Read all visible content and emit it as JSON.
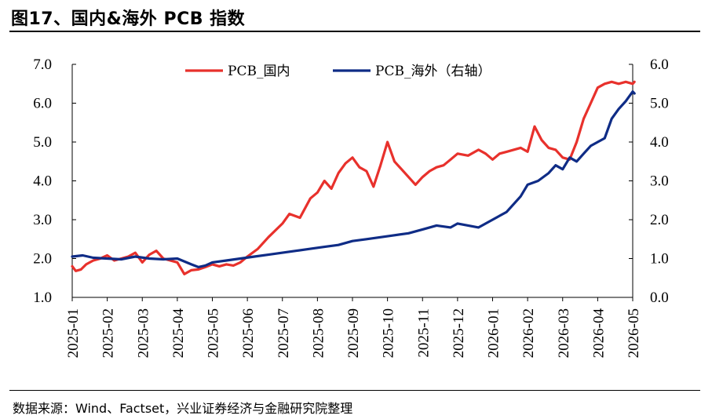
{
  "figure": {
    "title": "图17、国内&海外 PCB 指数",
    "source": "数据来源：Wind、Factset，兴业证券经济与金融研究院整理"
  },
  "colors": {
    "domestic": "#e8312c",
    "overseas": "#0f2c86",
    "axis": "#000000"
  },
  "chart_data": {
    "type": "line",
    "title": "",
    "xlabel": "",
    "ylabel": "",
    "grid": false,
    "legend_position": "top-center",
    "x_ticks": [
      "2025-01",
      "2025-02",
      "2025-03",
      "2025-04",
      "2025-05",
      "2025-06",
      "2025-07",
      "2025-08",
      "2025-09",
      "2025-10",
      "2025-11",
      "2025-12",
      "2026-01",
      "2026-02",
      "2026-03",
      "2026-04",
      "2026-05"
    ],
    "y_left": {
      "range": [
        1.0,
        7.0
      ],
      "ticks": [
        "1.0",
        "2.0",
        "3.0",
        "4.0",
        "5.0",
        "6.0",
        "7.0"
      ]
    },
    "y_right": {
      "range": [
        0.0,
        6.0
      ],
      "ticks": [
        "0.0",
        "1.0",
        "2.0",
        "3.0",
        "4.0",
        "5.0",
        "6.0"
      ]
    },
    "series": [
      {
        "name": "PCB_国内",
        "axis": "left",
        "color": "#e8312c",
        "x": [
          0.0,
          0.1,
          0.25,
          0.4,
          0.6,
          0.8,
          1.0,
          1.2,
          1.4,
          1.6,
          1.8,
          2.0,
          2.2,
          2.4,
          2.6,
          2.8,
          3.0,
          3.2,
          3.4,
          3.6,
          3.8,
          4.0,
          4.2,
          4.4,
          4.6,
          4.8,
          5.0,
          5.3,
          5.6,
          6.0,
          6.2,
          6.5,
          6.8,
          7.0,
          7.2,
          7.4,
          7.6,
          7.8,
          8.0,
          8.2,
          8.4,
          8.6,
          8.8,
          9.0,
          9.2,
          9.4,
          9.6,
          9.8,
          10.0,
          10.2,
          10.4,
          10.6,
          10.8,
          11.0,
          11.3,
          11.6,
          11.8,
          12.0,
          12.2,
          12.4,
          12.6,
          12.8,
          13.0,
          13.2,
          13.4,
          13.6,
          13.8,
          14.0,
          14.2,
          14.4,
          14.6,
          14.8,
          15.0,
          15.2,
          15.4,
          15.6,
          15.8,
          16.0,
          16.05
        ],
        "y": [
          1.8,
          1.68,
          1.72,
          1.85,
          1.95,
          2.0,
          2.08,
          1.95,
          2.0,
          2.05,
          2.15,
          1.9,
          2.1,
          2.2,
          2.0,
          1.95,
          1.9,
          1.6,
          1.7,
          1.72,
          1.78,
          1.85,
          1.8,
          1.85,
          1.82,
          1.9,
          2.05,
          2.25,
          2.55,
          2.9,
          3.15,
          3.05,
          3.55,
          3.7,
          4.0,
          3.8,
          4.2,
          4.45,
          4.6,
          4.35,
          4.25,
          3.85,
          4.4,
          5.0,
          4.5,
          4.3,
          4.1,
          3.9,
          4.1,
          4.25,
          4.35,
          4.4,
          4.55,
          4.7,
          4.65,
          4.8,
          4.7,
          4.55,
          4.7,
          4.75,
          4.8,
          4.85,
          4.75,
          5.4,
          5.05,
          4.85,
          4.8,
          4.6,
          4.55,
          5.0,
          5.6,
          6.0,
          6.4,
          6.5,
          6.55,
          6.5,
          6.55,
          6.5,
          6.55
        ]
      },
      {
        "name": "PCB_海外（右轴）",
        "axis": "right",
        "color": "#0f2c86",
        "x": [
          0.0,
          0.3,
          0.6,
          1.0,
          1.4,
          1.8,
          2.2,
          2.6,
          3.0,
          3.4,
          3.6,
          3.8,
          4.0,
          4.4,
          4.8,
          5.2,
          5.6,
          6.0,
          6.4,
          6.8,
          7.2,
          7.6,
          8.0,
          8.4,
          8.8,
          9.2,
          9.6,
          10.0,
          10.4,
          10.8,
          11.0,
          11.3,
          11.6,
          12.0,
          12.4,
          12.8,
          13.0,
          13.3,
          13.6,
          13.8,
          14.0,
          14.2,
          14.4,
          14.6,
          14.8,
          15.0,
          15.2,
          15.4,
          15.6,
          15.8,
          16.0,
          16.05
        ],
        "y": [
          1.05,
          1.08,
          1.02,
          1.0,
          0.98,
          1.05,
          1.0,
          0.98,
          1.0,
          0.85,
          0.78,
          0.82,
          0.9,
          0.95,
          1.0,
          1.05,
          1.1,
          1.15,
          1.2,
          1.25,
          1.3,
          1.35,
          1.45,
          1.5,
          1.55,
          1.6,
          1.65,
          1.75,
          1.85,
          1.8,
          1.9,
          1.85,
          1.8,
          2.0,
          2.2,
          2.6,
          2.9,
          3.0,
          3.2,
          3.4,
          3.3,
          3.6,
          3.5,
          3.7,
          3.9,
          4.0,
          4.1,
          4.6,
          4.85,
          5.05,
          5.3,
          5.25
        ]
      }
    ]
  }
}
